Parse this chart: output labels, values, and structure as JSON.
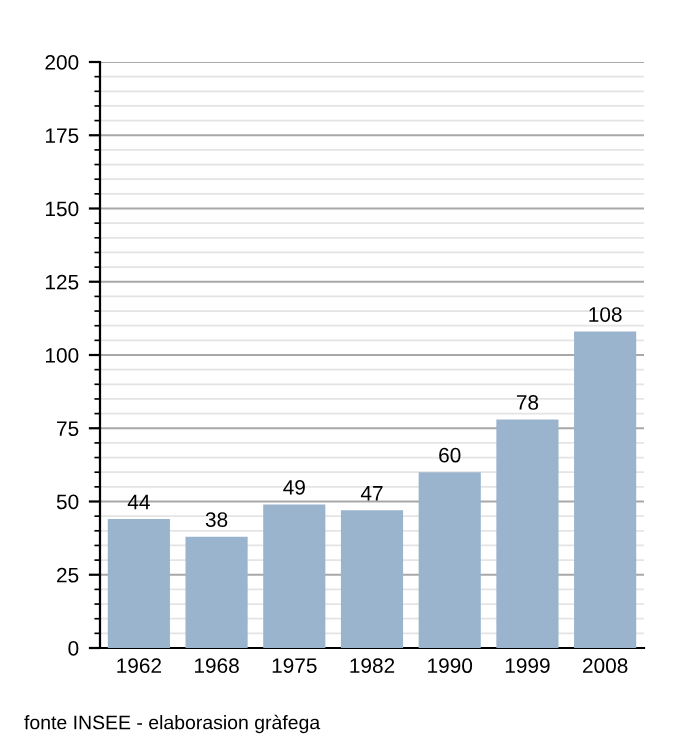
{
  "chart_data": {
    "type": "bar",
    "categories": [
      "1962",
      "1968",
      "1975",
      "1982",
      "1990",
      "1999",
      "2008"
    ],
    "values": [
      44,
      38,
      49,
      47,
      60,
      78,
      108
    ],
    "color": "#9bb4cd",
    "data_labels": true,
    "ylim": [
      0,
      200
    ],
    "yticks": [
      0,
      {
        "value": 5,
        "label": null
      },
      {
        "value": 10,
        "label": null
      },
      {
        "value": 15,
        "label": null
      },
      {
        "value": 20,
        "label": null
      },
      25,
      {
        "value": 30,
        "label": null
      },
      {
        "value": 35,
        "label": null
      },
      {
        "value": 40,
        "label": null
      },
      {
        "value": 45,
        "label": null
      },
      50,
      {
        "value": 55,
        "label": null
      },
      {
        "value": 60,
        "label": null
      },
      {
        "value": 65,
        "label": null
      },
      {
        "value": 70,
        "label": null
      },
      75,
      {
        "value": 80,
        "label": null
      },
      {
        "value": 85,
        "label": null
      },
      {
        "value": 90,
        "label": null
      },
      {
        "value": 95,
        "label": null
      },
      100,
      {
        "value": 105,
        "label": null
      },
      {
        "value": 110,
        "label": null
      },
      {
        "value": 115,
        "label": null
      },
      {
        "value": 120,
        "label": null
      },
      125,
      {
        "value": 130,
        "label": null
      },
      {
        "value": 135,
        "label": null
      },
      {
        "value": 140,
        "label": null
      },
      {
        "value": 145,
        "label": null
      },
      150,
      {
        "value": 155,
        "label": null
      },
      {
        "value": 160,
        "label": null
      },
      {
        "value": 165,
        "label": null
      },
      {
        "value": 170,
        "label": null
      },
      175,
      {
        "value": 180,
        "label": null
      },
      {
        "value": 185,
        "label": null
      },
      {
        "value": 190,
        "label": null
      },
      {
        "value": 195,
        "label": null
      },
      200
    ],
    "grid": "y",
    "annotations": [
      "fonte INSEE - elaborasion gràfega"
    ]
  }
}
